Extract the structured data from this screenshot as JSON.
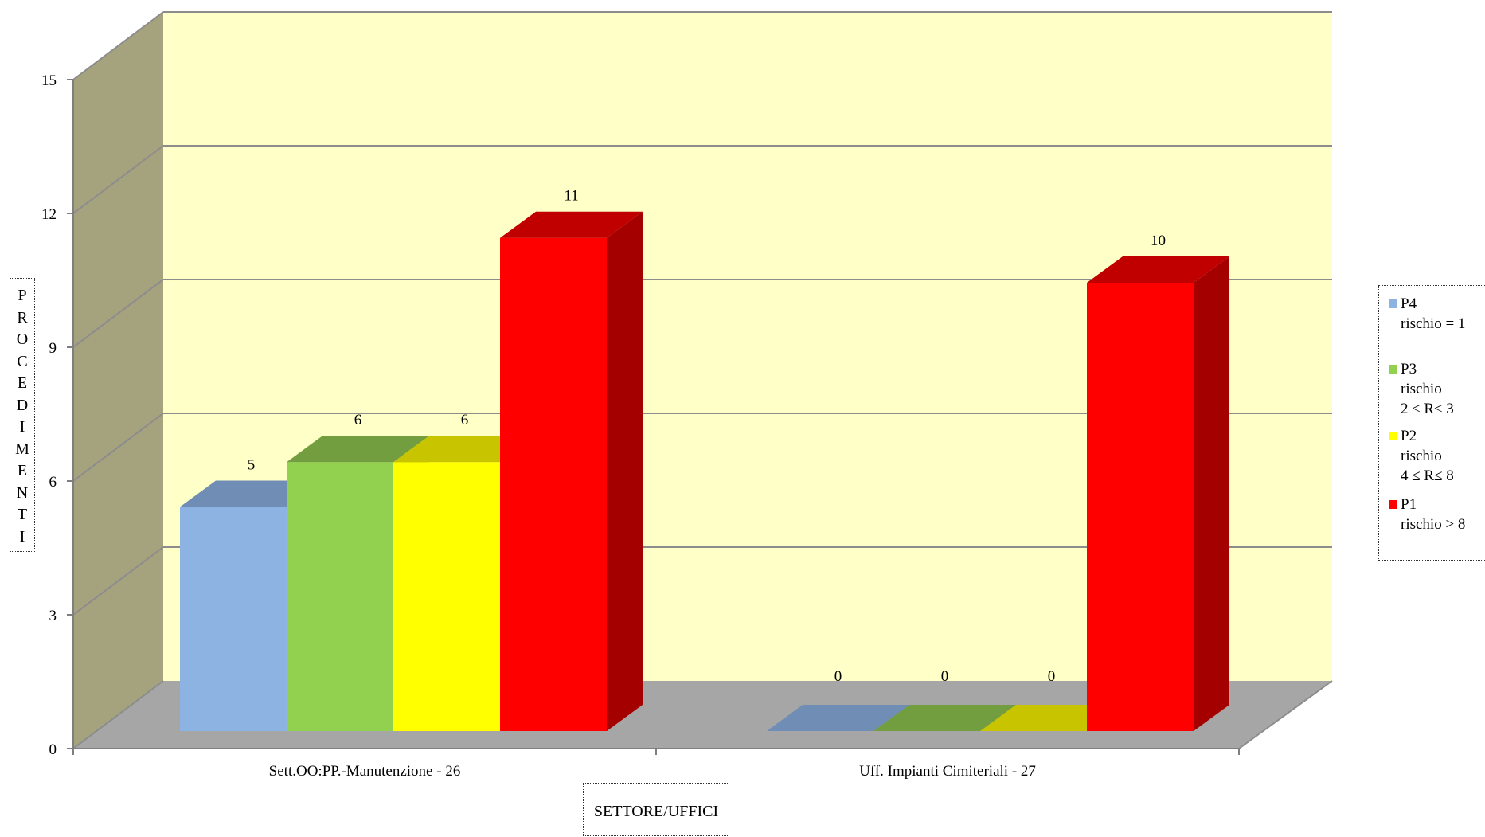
{
  "chart_data": {
    "type": "bar",
    "categories": [
      "Sett.OO:PP.-Manutenzione - 26",
      "Uff. Impianti Cimiteriali - 27"
    ],
    "series": [
      {
        "name": "P4\nrischio = 1",
        "values": [
          5,
          0
        ],
        "color": "#8db3e2",
        "top_color": "#6f8db5",
        "side_color": "#6f8db5"
      },
      {
        "name": "P3\nrischio\n 2 ≤ R≤ 3",
        "values": [
          6,
          0
        ],
        "color": "#92d050",
        "top_color": "#739e3f",
        "side_color": "#739e3f"
      },
      {
        "name": "P2\nrischio\n4 ≤ R≤ 8",
        "values": [
          6,
          0
        ],
        "color": "#ffff00",
        "top_color": "#c9c400",
        "side_color": "#c9c400"
      },
      {
        "name": "P1\nrischio > 8",
        "values": [
          11,
          10
        ],
        "color": "#ff0000",
        "top_color": "#c00000",
        "side_color": "#a50000"
      }
    ],
    "data_labels": [
      [
        "5",
        "0"
      ],
      [
        "6",
        "0"
      ],
      [
        "6",
        "0"
      ],
      [
        "11",
        "10"
      ]
    ],
    "ylabel": "PROCEDIMENTI",
    "xlabel": "SETTORE/UFFICI",
    "ylim": [
      0,
      15
    ],
    "yticks": [
      "0",
      "3",
      "6",
      "9",
      "12",
      "15"
    ],
    "grid": true,
    "legend_position": "right",
    "colors": {
      "back_wall": "#ffffc8",
      "side_wall": "#a5a27e",
      "floor": "#a6a6a6",
      "grid": "#8c8c8c"
    }
  }
}
